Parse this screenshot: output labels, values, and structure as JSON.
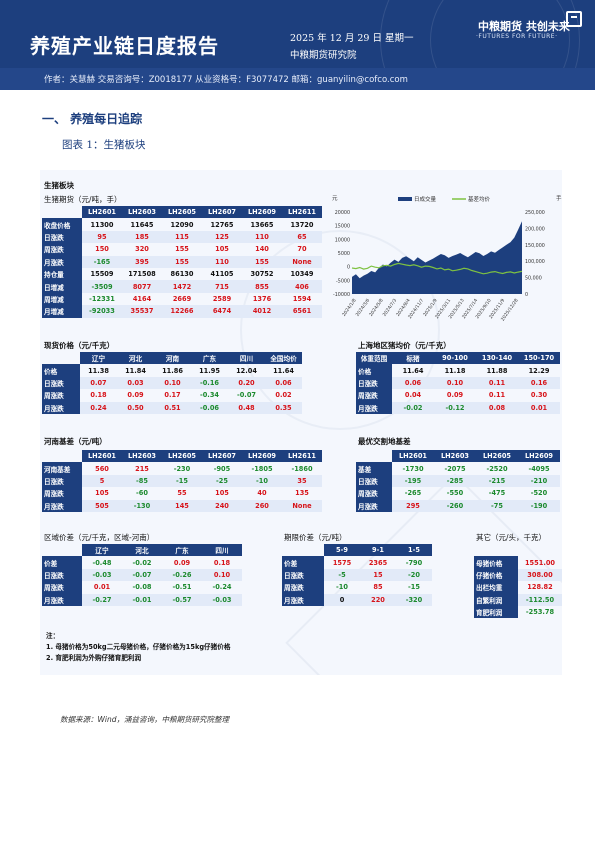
{
  "header": {
    "title": "养殖产业链日度报告",
    "date": "2025 年 12 月 29 日 星期一",
    "institute": "中粮期货研究院",
    "author_line": "作者：关慧赫    交易咨询号：Z0018177 从业资格号：F3077472    邮箱：guanyilin@cofco.com",
    "logo_cn": "中粮期货  共创未来",
    "logo_en": "·FUTURES FOR FUTURE·"
  },
  "section": {
    "heading": "一、  养殖每日追踪",
    "figure_caption": "图表 1：生猪板块"
  },
  "panel": {
    "title": "生猪板块",
    "futures_title": "生猪期货（元/吨，手）"
  },
  "futures": {
    "columns": [
      "LH2601",
      "LH2603",
      "LH2605",
      "LH2607",
      "LH2609",
      "LH2611"
    ],
    "rows": [
      {
        "label": "收盘价格",
        "cells": [
          [
            "11300",
            "neu"
          ],
          [
            "11645",
            "neu"
          ],
          [
            "12090",
            "neu"
          ],
          [
            "12765",
            "neu"
          ],
          [
            "13665",
            "neu"
          ],
          [
            "13720",
            "neu"
          ]
        ]
      },
      {
        "label": "日涨跌",
        "cells": [
          [
            "95",
            "up"
          ],
          [
            "185",
            "up"
          ],
          [
            "115",
            "up"
          ],
          [
            "125",
            "up"
          ],
          [
            "110",
            "up"
          ],
          [
            "65",
            "up"
          ]
        ]
      },
      {
        "label": "周涨跌",
        "cells": [
          [
            "150",
            "up"
          ],
          [
            "320",
            "up"
          ],
          [
            "155",
            "up"
          ],
          [
            "105",
            "up"
          ],
          [
            "140",
            "up"
          ],
          [
            "70",
            "up"
          ]
        ]
      },
      {
        "label": "月涨跌",
        "cells": [
          [
            "-165",
            "down"
          ],
          [
            "395",
            "up"
          ],
          [
            "155",
            "up"
          ],
          [
            "110",
            "up"
          ],
          [
            "155",
            "up"
          ],
          [
            "None",
            "up"
          ]
        ]
      },
      {
        "label": "持仓量",
        "cells": [
          [
            "15509",
            "neu"
          ],
          [
            "171508",
            "neu"
          ],
          [
            "86130",
            "neu"
          ],
          [
            "41105",
            "neu"
          ],
          [
            "30752",
            "neu"
          ],
          [
            "10349",
            "neu"
          ]
        ]
      },
      {
        "label": "日增减",
        "cells": [
          [
            "-3509",
            "down"
          ],
          [
            "8077",
            "up"
          ],
          [
            "1472",
            "up"
          ],
          [
            "715",
            "up"
          ],
          [
            "855",
            "up"
          ],
          [
            "406",
            "up"
          ]
        ]
      },
      {
        "label": "周增减",
        "cells": [
          [
            "-12331",
            "down"
          ],
          [
            "4164",
            "up"
          ],
          [
            "2669",
            "up"
          ],
          [
            "2589",
            "up"
          ],
          [
            "1376",
            "up"
          ],
          [
            "1594",
            "up"
          ]
        ]
      },
      {
        "label": "月增减",
        "cells": [
          [
            "-92033",
            "down"
          ],
          [
            "35537",
            "up"
          ],
          [
            "12266",
            "up"
          ],
          [
            "6474",
            "up"
          ],
          [
            "4012",
            "up"
          ],
          [
            "6561",
            "up"
          ]
        ]
      }
    ]
  },
  "chart_data": {
    "type": "line",
    "left_unit": "元",
    "right_unit": "手",
    "legend": [
      "日成交量",
      "基差均价"
    ],
    "series_colors": [
      "#1d3f7e",
      "#7ec241"
    ],
    "left_ticks": [
      "20000",
      "15000",
      "10000",
      "5000",
      "0",
      "-5000",
      "-10000"
    ],
    "right_ticks": [
      "250,000",
      "200,000",
      "150,000",
      "100,000",
      "50,000",
      "0"
    ],
    "x_ticks": [
      "2024/1/8",
      "2024/3/6",
      "2024/5/8",
      "2024/7/3",
      "2024/9/4",
      "2024/11/7",
      "2025/1/9",
      "2025/3/11",
      "2025/5/13",
      "2025/7/14",
      "2025/9/10",
      "2025/11/9",
      "2025/12/28"
    ],
    "series": [
      {
        "name": "日成交量",
        "values": [
          52000,
          60000,
          48000,
          56000,
          62000,
          70000,
          66000,
          80000,
          90000,
          84000,
          95000,
          105000,
          98000,
          110000,
          115000,
          108000,
          100000,
          112000,
          104000,
          96000,
          102000,
          108000,
          115000,
          122000,
          118000,
          110000,
          116000,
          120000,
          125000,
          118000,
          112000,
          120000,
          128000,
          124000,
          116000,
          122000,
          130000,
          126000,
          134000,
          142000,
          150000,
          158000,
          172000,
          196000,
          222000
        ]
      },
      {
        "name": "基差均价",
        "values": [
          -500,
          -700,
          -300,
          -900,
          -600,
          200,
          -200,
          -400,
          300,
          500,
          200,
          800,
          1200,
          900,
          600,
          400,
          700,
          300,
          -200,
          200,
          100,
          -300,
          -800,
          -500,
          -1200,
          -900,
          -1500,
          -1300,
          -1000,
          -600,
          -800,
          -1400,
          -1800,
          -2200,
          -2600,
          -2400,
          -2000,
          -1800,
          -2200,
          -2500,
          -2100,
          -1900,
          -2300,
          -2000,
          -1700
        ]
      }
    ]
  },
  "spot": {
    "title": "现货价格（元/千克）",
    "columns": [
      "辽宁",
      "河北",
      "河南",
      "广东",
      "四川",
      "全国均价"
    ],
    "rows": [
      {
        "label": "价格",
        "cells": [
          [
            "11.38",
            "neu"
          ],
          [
            "11.84",
            "neu"
          ],
          [
            "11.86",
            "neu"
          ],
          [
            "11.95",
            "neu"
          ],
          [
            "12.04",
            "neu"
          ],
          [
            "11.64",
            "neu"
          ]
        ]
      },
      {
        "label": "日涨跌",
        "cells": [
          [
            "0.07",
            "up"
          ],
          [
            "0.03",
            "up"
          ],
          [
            "0.10",
            "up"
          ],
          [
            "-0.16",
            "down"
          ],
          [
            "0.20",
            "up"
          ],
          [
            "0.06",
            "up"
          ]
        ]
      },
      {
        "label": "周涨跌",
        "cells": [
          [
            "0.18",
            "up"
          ],
          [
            "0.09",
            "up"
          ],
          [
            "0.17",
            "up"
          ],
          [
            "-0.34",
            "down"
          ],
          [
            "-0.07",
            "down"
          ],
          [
            "0.02",
            "up"
          ]
        ]
      },
      {
        "label": "月涨跌",
        "cells": [
          [
            "0.24",
            "up"
          ],
          [
            "0.50",
            "up"
          ],
          [
            "0.51",
            "up"
          ],
          [
            "-0.06",
            "down"
          ],
          [
            "0.48",
            "up"
          ],
          [
            "0.35",
            "up"
          ]
        ]
      }
    ]
  },
  "weight": {
    "title": "上海地区猪均价（元/千克）",
    "columns": [
      "体重范围",
      "标猪",
      "90-100",
      "130-140",
      "150-170"
    ],
    "rows": [
      {
        "label": "价格",
        "cells": [
          [
            "11.64",
            "neu"
          ],
          [
            "11.18",
            "neu"
          ],
          [
            "11.88",
            "neu"
          ],
          [
            "12.29",
            "neu"
          ]
        ]
      },
      {
        "label": "日涨跌",
        "cells": [
          [
            "0.06",
            "up"
          ],
          [
            "0.10",
            "up"
          ],
          [
            "0.11",
            "up"
          ],
          [
            "0.16",
            "up"
          ]
        ]
      },
      {
        "label": "周涨跌",
        "cells": [
          [
            "0.04",
            "up"
          ],
          [
            "0.09",
            "up"
          ],
          [
            "0.11",
            "up"
          ],
          [
            "0.30",
            "up"
          ]
        ]
      },
      {
        "label": "月涨跌",
        "cells": [
          [
            "-0.02",
            "down"
          ],
          [
            "-0.12",
            "down"
          ],
          [
            "0.08",
            "up"
          ],
          [
            "0.01",
            "up"
          ]
        ]
      }
    ]
  },
  "basis": {
    "title": "河南基差（元/吨）",
    "columns": [
      "LH2601",
      "LH2603",
      "LH2605",
      "LH2607",
      "LH2609",
      "LH2611"
    ],
    "rows": [
      {
        "label": "河南基差",
        "cells": [
          [
            "560",
            "up"
          ],
          [
            "215",
            "up"
          ],
          [
            "-230",
            "down"
          ],
          [
            "-905",
            "down"
          ],
          [
            "-1805",
            "down"
          ],
          [
            "-1860",
            "down"
          ]
        ]
      },
      {
        "label": "日涨跌",
        "cells": [
          [
            "5",
            "up"
          ],
          [
            "-85",
            "down"
          ],
          [
            "-15",
            "down"
          ],
          [
            "-25",
            "down"
          ],
          [
            "-10",
            "down"
          ],
          [
            "35",
            "up"
          ]
        ]
      },
      {
        "label": "周涨跌",
        "cells": [
          [
            "105",
            "up"
          ],
          [
            "-60",
            "down"
          ],
          [
            "55",
            "up"
          ],
          [
            "105",
            "up"
          ],
          [
            "40",
            "up"
          ],
          [
            "135",
            "up"
          ]
        ]
      },
      {
        "label": "月涨跌",
        "cells": [
          [
            "505",
            "up"
          ],
          [
            "-130",
            "down"
          ],
          [
            "145",
            "up"
          ],
          [
            "240",
            "up"
          ],
          [
            "260",
            "up"
          ],
          [
            "None",
            "up"
          ]
        ]
      }
    ]
  },
  "delivery": {
    "title": "最优交割地基差",
    "columns": [
      "LH2601",
      "LH2603",
      "LH2605",
      "LH2609"
    ],
    "rows": [
      {
        "label": "基差",
        "cells": [
          [
            "-1730",
            "down"
          ],
          [
            "-2075",
            "down"
          ],
          [
            "-2520",
            "down"
          ],
          [
            "-4095",
            "down"
          ]
        ]
      },
      {
        "label": "日涨跌",
        "cells": [
          [
            "-195",
            "down"
          ],
          [
            "-285",
            "down"
          ],
          [
            "-215",
            "down"
          ],
          [
            "-210",
            "down"
          ]
        ]
      },
      {
        "label": "周涨跌",
        "cells": [
          [
            "-265",
            "down"
          ],
          [
            "-550",
            "down"
          ],
          [
            "-475",
            "down"
          ],
          [
            "-520",
            "down"
          ]
        ]
      },
      {
        "label": "月涨跌",
        "cells": [
          [
            "295",
            "up"
          ],
          [
            "-260",
            "down"
          ],
          [
            "-75",
            "down"
          ],
          [
            "-190",
            "down"
          ]
        ]
      }
    ]
  },
  "region_spread": {
    "title": "区域价差（元/千克，区域-河南）",
    "columns": [
      "辽宁",
      "河北",
      "广东",
      "四川"
    ],
    "rows": [
      {
        "label": "价差",
        "cells": [
          [
            "-0.48",
            "down"
          ],
          [
            "-0.02",
            "down"
          ],
          [
            "0.09",
            "up"
          ],
          [
            "0.18",
            "up"
          ]
        ]
      },
      {
        "label": "日涨跌",
        "cells": [
          [
            "-0.03",
            "down"
          ],
          [
            "-0.07",
            "down"
          ],
          [
            "-0.26",
            "down"
          ],
          [
            "0.10",
            "up"
          ]
        ]
      },
      {
        "label": "周涨跌",
        "cells": [
          [
            "0.01",
            "up"
          ],
          [
            "-0.08",
            "down"
          ],
          [
            "-0.51",
            "down"
          ],
          [
            "-0.24",
            "down"
          ]
        ]
      },
      {
        "label": "月涨跌",
        "cells": [
          [
            "-0.27",
            "down"
          ],
          [
            "-0.01",
            "down"
          ],
          [
            "-0.57",
            "down"
          ],
          [
            "-0.03",
            "down"
          ]
        ]
      }
    ]
  },
  "calendar_spread": {
    "title": "期限价差（元/吨）",
    "columns": [
      "5-9",
      "9-1",
      "1-5"
    ],
    "rows": [
      {
        "label": "价差",
        "cells": [
          [
            "1575",
            "up"
          ],
          [
            "2365",
            "up"
          ],
          [
            "-790",
            "down"
          ]
        ]
      },
      {
        "label": "日涨跌",
        "cells": [
          [
            "-5",
            "down"
          ],
          [
            "15",
            "up"
          ],
          [
            "-20",
            "down"
          ]
        ]
      },
      {
        "label": "周涨跌",
        "cells": [
          [
            "-10",
            "down"
          ],
          [
            "85",
            "up"
          ],
          [
            "-15",
            "down"
          ]
        ]
      },
      {
        "label": "月涨跌",
        "cells": [
          [
            "0",
            "neu"
          ],
          [
            "220",
            "up"
          ],
          [
            "-320",
            "down"
          ]
        ]
      }
    ]
  },
  "others": {
    "title": "其它（元/头，千克）",
    "rows": [
      {
        "label": "母猪价格",
        "value": "1551.00",
        "cls": "up"
      },
      {
        "label": "仔猪价格",
        "value": "308.00",
        "cls": "up"
      },
      {
        "label": "出栏均重",
        "value": "128.82",
        "cls": "up"
      },
      {
        "label": "自繁利润",
        "value": "-112.50",
        "cls": "down"
      },
      {
        "label": "育肥利润",
        "value": "-253.78",
        "cls": "down"
      }
    ]
  },
  "notes": {
    "label": "注：",
    "line1": "1. 母猪价格为50kg二元母猪价格，仔猪价格为15kg仔猪价格",
    "line2": "2. 育肥利润为外购仔猪育肥利润"
  },
  "source": "数据来源：Wind，涌益咨询，中粮期货研究院整理"
}
